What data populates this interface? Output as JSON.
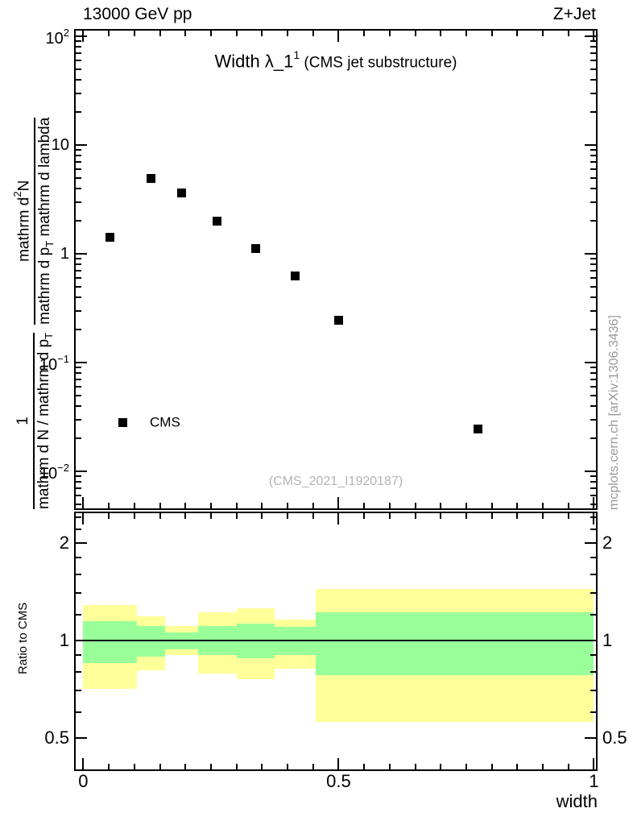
{
  "header": {
    "left": "13000 GeV pp",
    "right": "Z+Jet"
  },
  "title": {
    "main": "Width λ_1",
    "sup": "1",
    "paren": " (CMS jet substructure)"
  },
  "watermark": "(CMS_2021_I1920187)",
  "side_note": "mcplots.cern.ch [arXiv:1306.3436]",
  "xaxis_title": "width",
  "ratio_ylabel": "Ratio to CMS",
  "legend": {
    "label": "CMS",
    "marker": "filled-square"
  },
  "ylabel_fraction": {
    "frac1_num": "1",
    "frac1_den_a": "mathrm d N / mathrm d p",
    "frac1_den_sub": "T",
    "frac2_num_a": "mathrm d",
    "frac2_num_sup": "2",
    "frac2_num_b": "N",
    "frac2_den_a": "mathrm d p",
    "frac2_den_sub": "T",
    "frac2_den_b": " mathrm d lambda"
  },
  "colors": {
    "marker": "#000000",
    "outer_band": "#ffff99",
    "inner_band": "#99ff99",
    "watermark_text": "#b3b3b3",
    "side_note_text": "#999999",
    "axis": "#000000"
  },
  "chart_data": {
    "type": "scatter",
    "title": "Width λ_1^1 (CMS jet substructure)",
    "top_left_label": "13000 GeV pp",
    "top_right_label": "Z+Jet",
    "xlabel": "width",
    "ylabel": "1/(mathrm d N / mathrm d p_T) · mathrm d^2 N/(mathrm d p_T mathrm d lambda)",
    "top_panel": {
      "yscale": "log",
      "ylim": [
        0.0044,
        117
      ],
      "xlim": [
        -0.018,
        1.008
      ],
      "grid": false,
      "yticks": [
        {
          "v": 100,
          "b": "10",
          "e": "2"
        },
        {
          "v": 10,
          "b": "10",
          "e": ""
        },
        {
          "v": 1,
          "b": "1",
          "e": ""
        },
        {
          "v": 0.1,
          "b": "10",
          "e": "−1"
        },
        {
          "v": 0.01,
          "b": "10",
          "e": "−2"
        }
      ],
      "series": [
        {
          "name": "CMS",
          "marker": "filled-square",
          "color": "#000000",
          "points": [
            [
              0.0525,
              1.41
            ],
            [
              0.1325,
              4.9
            ],
            [
              0.1925,
              3.65
            ],
            [
              0.2625,
              2.0
            ],
            [
              0.3375,
              1.11
            ],
            [
              0.415,
              0.63
            ],
            [
              0.5,
              0.246
            ],
            [
              0.7725,
              0.0243
            ]
          ]
        }
      ]
    },
    "ratio_panel": {
      "ylabel": "Ratio to CMS",
      "yscale": "log",
      "ylim": [
        0.395,
        2.5
      ],
      "reference_line": 1,
      "yticks": [
        {
          "v": 2,
          "t": "2"
        },
        {
          "v": 1,
          "t": "1"
        },
        {
          "v": 0.5,
          "t": "0.5"
        }
      ],
      "minor_yticks": [
        0.4,
        0.6,
        0.7,
        0.8,
        0.9,
        1.2,
        1.4,
        1.6,
        1.8,
        2.2,
        2.4
      ],
      "bin_edges": [
        0,
        0.105,
        0.16,
        0.225,
        0.3,
        0.375,
        0.455,
        0.545,
        1.0
      ],
      "outer_band": [
        [
          0.71,
          1.29
        ],
        [
          0.81,
          1.19
        ],
        [
          0.9,
          1.11
        ],
        [
          0.79,
          1.22
        ],
        [
          0.76,
          1.26
        ],
        [
          0.82,
          1.16
        ],
        [
          0.56,
          1.44
        ],
        [
          0.56,
          1.44
        ]
      ],
      "inner_band": [
        [
          0.85,
          1.15
        ],
        [
          0.89,
          1.11
        ],
        [
          0.94,
          1.06
        ],
        [
          0.9,
          1.11
        ],
        [
          0.88,
          1.13
        ],
        [
          0.9,
          1.1
        ],
        [
          0.78,
          1.22
        ],
        [
          0.78,
          1.22
        ]
      ]
    },
    "xticks": [
      {
        "v": 0,
        "t": "0"
      },
      {
        "v": 0.5,
        "t": "0.5"
      },
      {
        "v": 1,
        "t": "1"
      }
    ],
    "x_minor_step": 0.05
  }
}
